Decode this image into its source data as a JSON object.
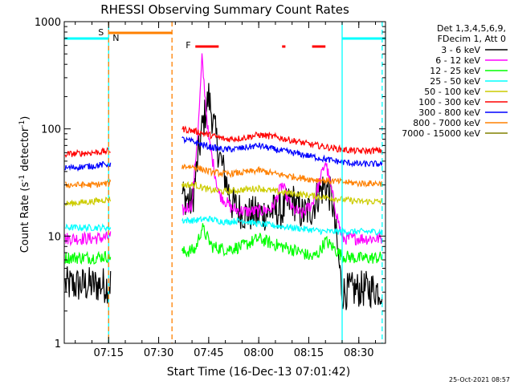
{
  "chart_data": {
    "type": "line",
    "title": "RHESSI Observing Summary Count Rates",
    "xlabel": "Start Time (16-Dec-13 07:01:42)",
    "ylabel": "Count Rate (s⁻¹ detector⁻¹)",
    "ylabel_parts": {
      "main": "Count Rate (s",
      "sup1": "-1",
      "mid": " detector",
      "sup2": "-1",
      "end": ")"
    },
    "y_scale": "log",
    "ylim": [
      1,
      1000
    ],
    "xlim": [
      "07:01:42",
      "08:38:00"
    ],
    "x_ticks": [
      "07:15",
      "07:30",
      "07:45",
      "08:00",
      "08:15",
      "08:30"
    ],
    "y_ticks": [
      "1",
      "10",
      "100",
      "1000"
    ],
    "legend_position": "right",
    "legend_header": [
      "Det 1,3,4,5,6,9,",
      "FDecim 1, Att 0"
    ],
    "series": [
      {
        "name": "3 - 6 keV",
        "color": "#000000",
        "x": [
          "07:02",
          "07:10",
          "07:15",
          "07:37",
          "07:40",
          "07:43",
          "07:45",
          "07:48",
          "07:52",
          "07:56",
          "08:00",
          "08:04",
          "08:07",
          "08:10",
          "08:13",
          "08:16",
          "08:18",
          "08:20",
          "08:22",
          "08:25",
          "08:30",
          "08:37"
        ],
        "y": [
          3.5,
          3.5,
          3.5,
          25,
          20,
          100,
          200,
          60,
          20,
          16,
          16,
          17,
          17,
          22,
          16,
          18,
          25,
          30,
          22,
          3,
          3.2,
          3.2
        ]
      },
      {
        "name": "6 - 12 keV",
        "color": "#ff00ff",
        "x": [
          "07:02",
          "07:10",
          "07:15",
          "07:37",
          "07:40",
          "07:42",
          "07:43",
          "07:45",
          "07:48",
          "07:52",
          "07:56",
          "08:00",
          "08:04",
          "08:07",
          "08:10",
          "08:13",
          "08:16",
          "08:18",
          "08:20",
          "08:22",
          "08:25",
          "08:30",
          "08:37"
        ],
        "y": [
          9.5,
          9.5,
          9.7,
          17,
          20,
          120,
          450,
          80,
          25,
          18,
          17,
          17,
          18,
          30,
          18,
          16,
          20,
          30,
          50,
          25,
          9.5,
          9.5,
          9.5
        ]
      },
      {
        "name": "12 - 25 keV",
        "color": "#00ff00",
        "x": [
          "07:02",
          "07:10",
          "07:15",
          "07:37",
          "07:41",
          "07:43",
          "07:46",
          "07:50",
          "07:55",
          "08:00",
          "08:04",
          "08:07",
          "08:10",
          "08:13",
          "08:16",
          "08:18",
          "08:20",
          "08:22",
          "08:25",
          "08:30",
          "08:37"
        ],
        "y": [
          6.3,
          6.3,
          6.5,
          7,
          7.5,
          12,
          8,
          7.5,
          8,
          9.5,
          8.5,
          8,
          7.5,
          7,
          6.3,
          7,
          9,
          8,
          6.5,
          6.2,
          6.3
        ]
      },
      {
        "name": "25 - 50 keV",
        "color": "#00ffff",
        "x": [
          "07:02",
          "07:10",
          "07:15",
          "07:37",
          "07:41",
          "07:45",
          "07:50",
          "07:55",
          "08:00",
          "08:05",
          "08:10",
          "08:15",
          "08:20",
          "08:25",
          "08:30",
          "08:37"
        ],
        "y": [
          12,
          12,
          12,
          14,
          14,
          14.5,
          13.5,
          14,
          13,
          12.5,
          12,
          11.5,
          11,
          11,
          11,
          11
        ]
      },
      {
        "name": "50 - 100 keV",
        "color": "#cccc00",
        "x": [
          "07:02",
          "07:10",
          "07:15",
          "07:37",
          "07:41",
          "07:45",
          "07:50",
          "07:55",
          "08:00",
          "08:05",
          "08:10",
          "08:15",
          "08:20",
          "08:25",
          "08:30",
          "08:37"
        ],
        "y": [
          20,
          21,
          22,
          30,
          30,
          27,
          26,
          27,
          28,
          26,
          25,
          24,
          23,
          22,
          21,
          21
        ]
      },
      {
        "name": "100 - 300 keV",
        "color": "#ff0000",
        "x": [
          "07:02",
          "07:10",
          "07:15",
          "07:37",
          "07:41",
          "07:45",
          "07:50",
          "07:55",
          "08:00",
          "08:05",
          "08:10",
          "08:15",
          "08:20",
          "08:25",
          "08:30",
          "08:37"
        ],
        "y": [
          58,
          60,
          62,
          100,
          95,
          88,
          80,
          82,
          88,
          84,
          78,
          72,
          68,
          64,
          62,
          63
        ]
      },
      {
        "name": "300 - 800 keV",
        "color": "#0000ff",
        "x": [
          "07:02",
          "07:10",
          "07:15",
          "07:37",
          "07:41",
          "07:45",
          "07:50",
          "07:55",
          "08:00",
          "08:05",
          "08:10",
          "08:15",
          "08:20",
          "08:25",
          "08:30",
          "08:37"
        ],
        "y": [
          43,
          45,
          47,
          80,
          75,
          68,
          64,
          66,
          70,
          64,
          60,
          56,
          52,
          49,
          47,
          47
        ]
      },
      {
        "name": "800 - 7000 keV",
        "color": "#ff8000",
        "x": [
          "07:02",
          "07:10",
          "07:15",
          "07:37",
          "07:41",
          "07:45",
          "07:50",
          "07:55",
          "08:00",
          "08:05",
          "08:10",
          "08:15",
          "08:20",
          "08:25",
          "08:30",
          "08:37"
        ],
        "y": [
          30,
          30,
          31,
          45,
          44,
          40,
          38,
          39,
          41,
          38,
          36,
          34,
          33,
          32,
          31,
          31
        ]
      },
      {
        "name": "7000 - 15000 keV",
        "color": "#808000",
        "x": [],
        "y": []
      }
    ],
    "annotations": {
      "saa": {
        "label": "S",
        "color": "#ff8000",
        "x_start": "07:15",
        "x_end": "07:34"
      },
      "night": {
        "label": "N",
        "color": "#00ffff",
        "segments": [
          [
            "07:01:42",
            "07:15"
          ],
          [
            "08:25",
            "08:38"
          ]
        ]
      },
      "flare": {
        "label": "F",
        "color": "#ff0000",
        "segments": [
          [
            "07:41",
            "07:48"
          ],
          [
            "08:07",
            "08:08"
          ],
          [
            "08:16",
            "08:20"
          ]
        ]
      },
      "vlines": [
        {
          "x": "07:15",
          "color": "#00ffff",
          "style": "solid"
        },
        {
          "x": "07:15",
          "color": "#ff8000",
          "style": "dashed"
        },
        {
          "x": "07:34",
          "color": "#ff8000",
          "style": "dashed"
        },
        {
          "x": "08:25",
          "color": "#00ffff",
          "style": "solid"
        },
        {
          "x": "08:37",
          "color": "#00ffff",
          "style": "dashed"
        }
      ]
    }
  },
  "timestamp": "25-Oct-2021 08:57"
}
